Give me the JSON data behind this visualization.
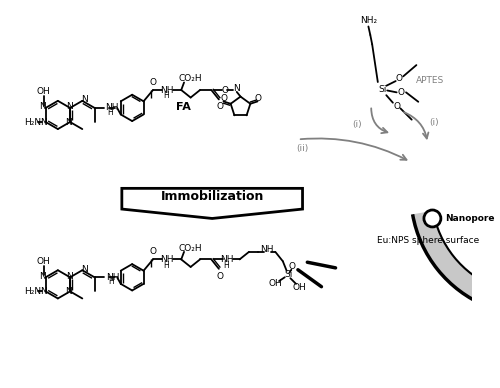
{
  "bg_color": "#ffffff",
  "line_color": "#000000",
  "gray_color": "#888888",
  "light_gray": "#c8c8c8",
  "immobilization_text": "Immobilization",
  "FA_label": "FA",
  "APTES_label": "APTES",
  "Nanopore_label": "Nanopore",
  "EuNPS_label": "Eu:NPS sphere surface"
}
